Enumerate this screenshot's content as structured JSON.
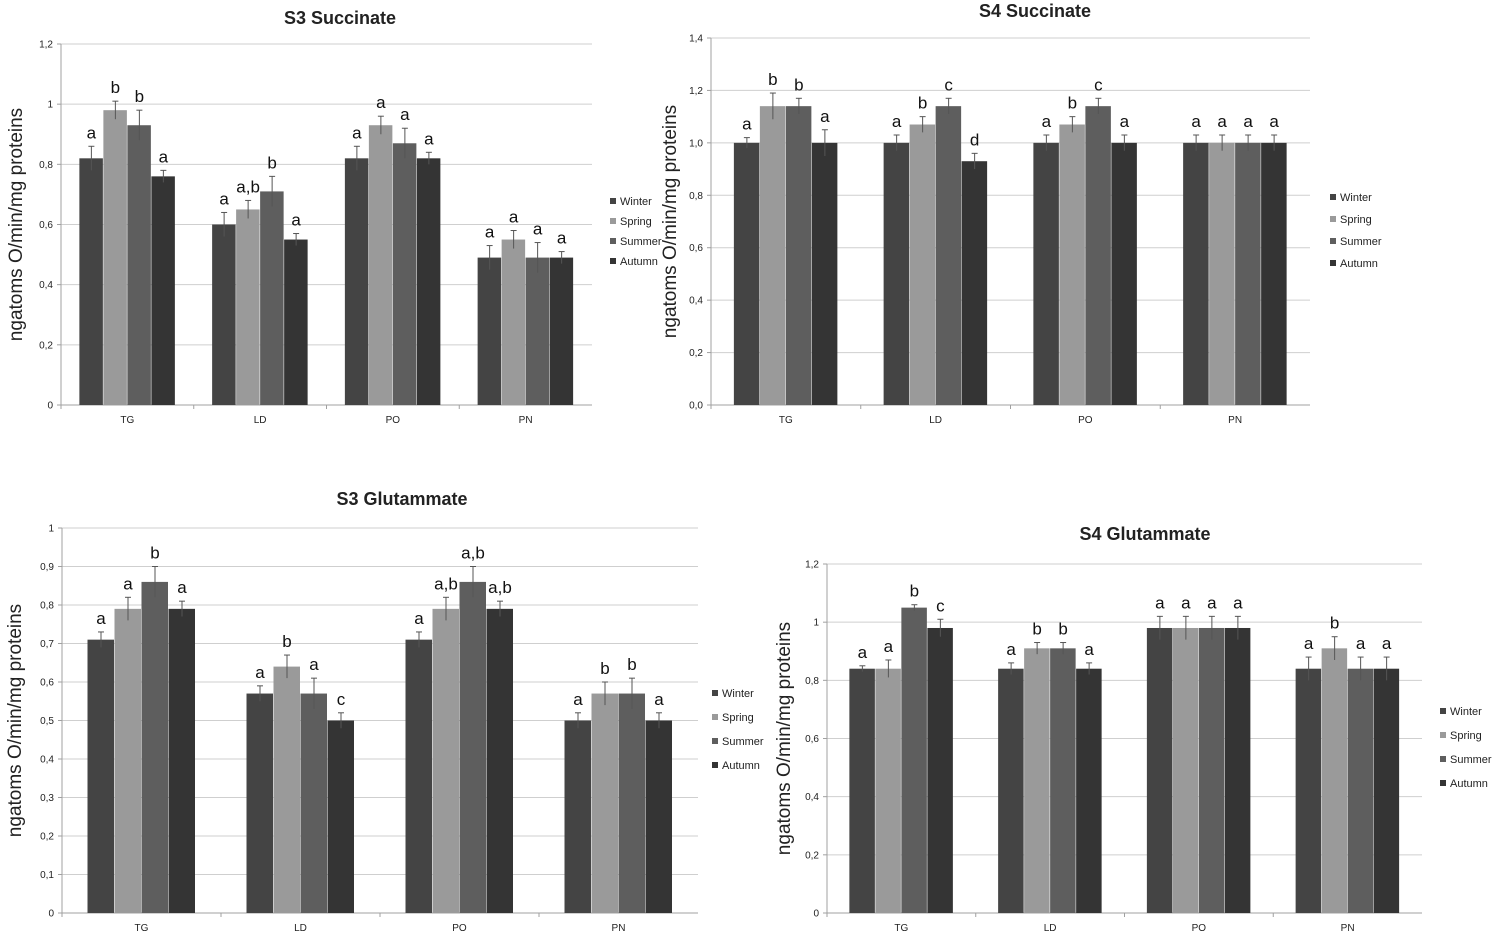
{
  "colors": {
    "Winter": "#444444",
    "Spring": "#9a9a9a",
    "Summer": "#5e5e5e",
    "Autumn": "#343434",
    "grid": "#cfcfcf",
    "axis": "#a0a0a0",
    "error": "#555555"
  },
  "legend_labels": [
    "Winter",
    "Spring",
    "Summer",
    "Autumn"
  ],
  "chart_data": [
    {
      "type": "bar",
      "title": "S3 Succinate",
      "ylabel": "ngatoms O/min/mg proteins",
      "xlabel": "",
      "categories": [
        "TG",
        "LD",
        "PO",
        "PN"
      ],
      "ylim": [
        0,
        1.2
      ],
      "yticks": [
        "0",
        "0,2",
        "0,4",
        "0,6",
        "0,8",
        "1",
        "1,2"
      ],
      "legend": "right",
      "series": [
        {
          "name": "Winter",
          "values": [
            0.82,
            0.6,
            0.82,
            0.49
          ],
          "errors": [
            0.04,
            0.04,
            0.04,
            0.04
          ],
          "labels": [
            "a",
            "a",
            "a",
            "a"
          ]
        },
        {
          "name": "Spring",
          "values": [
            0.98,
            0.65,
            0.93,
            0.55
          ],
          "errors": [
            0.03,
            0.03,
            0.03,
            0.03
          ],
          "labels": [
            "b",
            "a,b",
            "a",
            "a"
          ]
        },
        {
          "name": "Summer",
          "values": [
            0.93,
            0.71,
            0.87,
            0.49
          ],
          "errors": [
            0.05,
            0.05,
            0.05,
            0.05
          ],
          "labels": [
            "b",
            "b",
            "a",
            "a"
          ]
        },
        {
          "name": "Autumn",
          "values": [
            0.76,
            0.55,
            0.82,
            0.49
          ],
          "errors": [
            0.02,
            0.02,
            0.02,
            0.02
          ],
          "labels": [
            "a",
            "a",
            "a",
            "a"
          ]
        }
      ]
    },
    {
      "type": "bar",
      "title": "S4 Succinate",
      "ylabel": "ngatoms O/min/mg proteins",
      "xlabel": "",
      "categories": [
        "TG",
        "LD",
        "PO",
        "PN"
      ],
      "ylim": [
        0,
        1.4
      ],
      "yticks": [
        "0,0",
        "0,2",
        "0,4",
        "0,6",
        "0,8",
        "1,0",
        "1,2",
        "1,4"
      ],
      "legend": "right",
      "series": [
        {
          "name": "Winter",
          "values": [
            1.0,
            1.0,
            1.0,
            1.0
          ],
          "errors": [
            0.02,
            0.03,
            0.03,
            0.03
          ],
          "labels": [
            "a",
            "a",
            "a",
            "a"
          ]
        },
        {
          "name": "Spring",
          "values": [
            1.14,
            1.07,
            1.07,
            1.0
          ],
          "errors": [
            0.05,
            0.03,
            0.03,
            0.03
          ],
          "labels": [
            "b",
            "b",
            "b",
            "a"
          ]
        },
        {
          "name": "Summer",
          "values": [
            1.14,
            1.14,
            1.14,
            1.0
          ],
          "errors": [
            0.03,
            0.03,
            0.03,
            0.03
          ],
          "labels": [
            "b",
            "c",
            "c",
            "a"
          ]
        },
        {
          "name": "Autumn",
          "values": [
            1.0,
            0.93,
            1.0,
            1.0
          ],
          "errors": [
            0.05,
            0.03,
            0.03,
            0.03
          ],
          "labels": [
            "a",
            "d",
            "a",
            "a"
          ]
        }
      ]
    },
    {
      "type": "bar",
      "title": "S3 Glutammate",
      "ylabel": "ngatoms O/min/mg proteins",
      "xlabel": "",
      "categories": [
        "TG",
        "LD",
        "PO",
        "PN"
      ],
      "ylim": [
        0,
        1.0
      ],
      "yticks": [
        "0",
        "0,1",
        "0,2",
        "0,3",
        "0,4",
        "0,5",
        "0,6",
        "0,7",
        "0,8",
        "0,9",
        "1"
      ],
      "legend": "right",
      "series": [
        {
          "name": "Winter",
          "values": [
            0.71,
            0.57,
            0.71,
            0.5
          ],
          "errors": [
            0.02,
            0.02,
            0.02,
            0.02
          ],
          "labels": [
            "a",
            "a",
            "a",
            "a"
          ]
        },
        {
          "name": "Spring",
          "values": [
            0.79,
            0.64,
            0.79,
            0.57
          ],
          "errors": [
            0.03,
            0.03,
            0.03,
            0.03
          ],
          "labels": [
            "a",
            "b",
            "a,b",
            "b"
          ]
        },
        {
          "name": "Summer",
          "values": [
            0.86,
            0.57,
            0.86,
            0.57
          ],
          "errors": [
            0.04,
            0.04,
            0.04,
            0.04
          ],
          "labels": [
            "b",
            "a",
            "a,b",
            "b"
          ]
        },
        {
          "name": "Autumn",
          "values": [
            0.79,
            0.5,
            0.79,
            0.5
          ],
          "errors": [
            0.02,
            0.02,
            0.02,
            0.02
          ],
          "labels": [
            "a",
            "c",
            "a,b",
            "a"
          ]
        }
      ]
    },
    {
      "type": "bar",
      "title": "S4 Glutammate",
      "ylabel": "ngatoms O/min/mg proteins",
      "xlabel": "",
      "categories": [
        "TG",
        "LD",
        "PO",
        "PN"
      ],
      "ylim": [
        0,
        1.2
      ],
      "yticks": [
        "0",
        "0,2",
        "0,4",
        "0,6",
        "0,8",
        "1",
        "1,2"
      ],
      "legend": "right",
      "series": [
        {
          "name": "Winter",
          "values": [
            0.84,
            0.84,
            0.98,
            0.84
          ],
          "errors": [
            0.01,
            0.02,
            0.04,
            0.04
          ],
          "labels": [
            "a",
            "a",
            "a",
            "a"
          ]
        },
        {
          "name": "Spring",
          "values": [
            0.84,
            0.91,
            0.98,
            0.91
          ],
          "errors": [
            0.03,
            0.02,
            0.04,
            0.04
          ],
          "labels": [
            "a",
            "b",
            "a",
            "b"
          ]
        },
        {
          "name": "Summer",
          "values": [
            1.05,
            0.91,
            0.98,
            0.84
          ],
          "errors": [
            0.01,
            0.02,
            0.04,
            0.04
          ],
          "labels": [
            "b",
            "b",
            "a",
            "a"
          ]
        },
        {
          "name": "Autumn",
          "values": [
            0.98,
            0.84,
            0.98,
            0.84
          ],
          "errors": [
            0.03,
            0.02,
            0.04,
            0.04
          ],
          "labels": [
            "c",
            "a",
            "a",
            "a"
          ]
        }
      ]
    }
  ]
}
